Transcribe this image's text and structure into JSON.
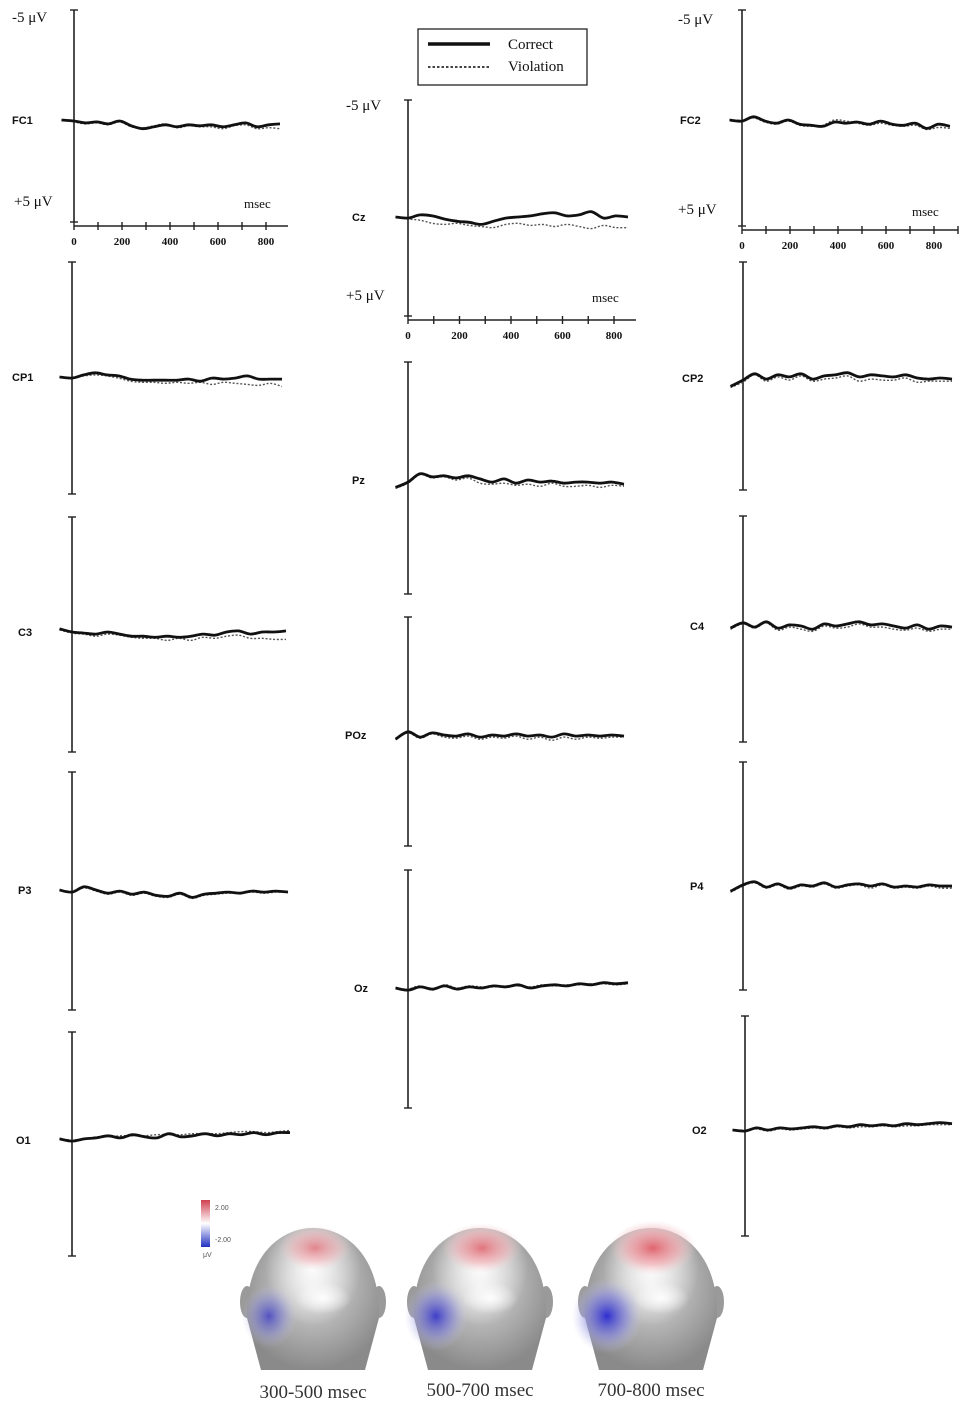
{
  "chart_data": {
    "type": "line",
    "units": {
      "neg": "-5 μV",
      "pos": "+5 μV",
      "time": "msec"
    },
    "ticks": [
      "0",
      "200",
      "400",
      "600",
      "800"
    ],
    "legend": [
      {
        "label": "Correct",
        "style": "solid"
      },
      {
        "label": "Violation",
        "style": "dotted"
      }
    ],
    "colors": {
      "correct": "#111111",
      "violation": "#555555"
    },
    "series_x_ms": [
      -50,
      0,
      50,
      100,
      150,
      200,
      250,
      300,
      350,
      400,
      450,
      500,
      550,
      600,
      650,
      700,
      750,
      800,
      850,
      900
    ],
    "channels": [
      {
        "name": "FC1",
        "scaled": true,
        "correct": [
          0.0,
          0.2,
          0.6,
          0.4,
          0.8,
          0.2,
          1.2,
          1.8,
          1.4,
          1.0,
          1.4,
          1.0,
          1.2,
          1.0,
          1.4,
          1.0,
          0.6,
          1.4,
          1.0,
          0.8
        ],
        "violation": [
          0.0,
          0.4,
          0.8,
          0.6,
          1.0,
          0.4,
          1.4,
          1.6,
          1.2,
          0.8,
          1.6,
          1.2,
          1.4,
          1.4,
          1.8,
          1.2,
          1.0,
          1.8,
          1.6,
          1.8
        ]
      },
      {
        "name": "Cz",
        "scaled": true,
        "correct": [
          0.0,
          0.2,
          -0.4,
          -0.2,
          0.4,
          0.8,
          1.0,
          1.4,
          0.8,
          0.2,
          0.0,
          -0.2,
          -0.6,
          -0.8,
          -0.2,
          -0.4,
          -1.0,
          0.2,
          -0.2,
          0.0
        ],
        "violation": [
          0.0,
          0.4,
          0.6,
          1.2,
          1.4,
          1.2,
          1.6,
          1.8,
          2.0,
          1.4,
          1.2,
          1.6,
          1.4,
          1.8,
          1.4,
          1.8,
          2.2,
          1.6,
          2.0,
          2.0
        ]
      },
      {
        "name": "FC2",
        "scaled": true,
        "correct": [
          0.0,
          0.2,
          -0.6,
          0.2,
          0.6,
          0.0,
          0.8,
          1.0,
          1.2,
          0.4,
          0.6,
          0.4,
          0.8,
          0.2,
          0.8,
          1.0,
          0.6,
          1.6,
          0.8,
          1.2
        ],
        "violation": [
          0.0,
          0.0,
          -0.4,
          0.4,
          0.8,
          0.2,
          1.0,
          1.2,
          1.0,
          0.0,
          0.2,
          0.6,
          1.0,
          0.6,
          1.0,
          1.2,
          1.0,
          1.8,
          1.4,
          1.6
        ]
      },
      {
        "name": "CP1",
        "correct": [
          0.0,
          0.2,
          -0.4,
          -0.8,
          -0.4,
          -0.2,
          0.4,
          0.6,
          0.6,
          0.6,
          0.6,
          0.4,
          0.8,
          0.2,
          0.4,
          0.2,
          -0.2,
          0.4,
          0.4,
          0.4
        ],
        "violation": [
          0.0,
          0.2,
          -0.2,
          -0.4,
          -0.2,
          0.2,
          0.8,
          1.0,
          1.0,
          1.2,
          1.0,
          1.2,
          1.0,
          1.4,
          1.0,
          1.2,
          1.4,
          1.6,
          1.2,
          1.8
        ]
      },
      {
        "name": "Pz",
        "correct": [
          1.4,
          0.4,
          -1.2,
          -0.6,
          -0.8,
          -0.4,
          -0.8,
          -0.2,
          0.4,
          -0.2,
          0.6,
          0.0,
          0.4,
          0.2,
          0.6,
          0.4,
          0.4,
          0.6,
          0.4,
          0.8
        ],
        "violation": [
          1.6,
          0.6,
          -1.0,
          -0.4,
          -0.6,
          0.0,
          -0.4,
          0.6,
          0.8,
          0.6,
          1.0,
          0.8,
          1.2,
          0.6,
          1.2,
          1.2,
          1.0,
          1.4,
          1.0,
          1.2
        ]
      },
      {
        "name": "CP2",
        "correct": [
          1.6,
          0.4,
          -0.8,
          0.2,
          -0.6,
          -0.2,
          -0.8,
          0.2,
          -0.4,
          -0.6,
          -1.0,
          -0.2,
          -0.6,
          -0.4,
          -0.2,
          -0.6,
          0.0,
          0.2,
          0.0,
          0.2
        ],
        "violation": [
          1.8,
          0.8,
          -0.6,
          0.6,
          -0.2,
          0.4,
          -0.4,
          0.6,
          0.2,
          0.0,
          -0.4,
          0.6,
          0.2,
          0.4,
          0.4,
          0.0,
          0.8,
          0.6,
          0.6,
          0.6
        ]
      },
      {
        "name": "C3",
        "correct": [
          -0.6,
          0.0,
          0.2,
          0.4,
          0.0,
          0.4,
          0.8,
          0.8,
          1.0,
          0.8,
          1.0,
          0.8,
          0.4,
          0.6,
          0.0,
          -0.2,
          0.4,
          0.0,
          0.0,
          -0.2
        ],
        "violation": [
          -0.4,
          0.2,
          0.4,
          0.8,
          0.4,
          0.6,
          1.0,
          1.2,
          1.2,
          1.6,
          1.2,
          1.6,
          1.0,
          1.2,
          0.8,
          0.6,
          1.2,
          1.2,
          1.4,
          1.4
        ]
      },
      {
        "name": "C4",
        "correct": [
          0.4,
          -0.6,
          0.2,
          -0.8,
          0.4,
          -0.2,
          0.0,
          0.6,
          -0.4,
          0.0,
          -0.4,
          -0.8,
          -0.2,
          -0.4,
          0.0,
          0.4,
          -0.2,
          0.6,
          0.0,
          0.2
        ],
        "violation": [
          0.6,
          -0.4,
          0.4,
          -0.6,
          0.8,
          0.2,
          0.6,
          1.0,
          0.0,
          0.4,
          0.2,
          -0.4,
          0.2,
          0.2,
          0.6,
          0.8,
          0.4,
          1.0,
          0.6,
          0.6
        ]
      },
      {
        "name": "POz",
        "correct": [
          0.8,
          -0.6,
          0.4,
          -0.4,
          0.0,
          0.2,
          -0.2,
          0.4,
          0.0,
          0.2,
          -0.2,
          0.2,
          0.0,
          0.4,
          -0.2,
          0.2,
          0.0,
          0.2,
          0.0,
          0.2
        ],
        "violation": [
          0.8,
          -0.4,
          0.6,
          -0.2,
          0.4,
          0.6,
          0.2,
          0.8,
          0.4,
          0.6,
          0.2,
          0.8,
          0.4,
          1.0,
          0.4,
          0.8,
          0.4,
          0.6,
          0.4,
          0.4
        ]
      },
      {
        "name": "P3",
        "correct": [
          0.0,
          0.4,
          -0.6,
          0.0,
          0.6,
          0.2,
          0.8,
          0.4,
          1.0,
          1.2,
          0.6,
          1.4,
          0.8,
          0.6,
          0.4,
          0.6,
          0.2,
          0.4,
          0.2,
          0.4
        ],
        "violation": [
          0.0,
          0.4,
          -0.4,
          0.2,
          0.8,
          0.4,
          1.0,
          0.6,
          1.2,
          1.4,
          0.8,
          1.6,
          1.0,
          0.8,
          0.6,
          0.6,
          0.4,
          0.6,
          0.4,
          0.4
        ]
      },
      {
        "name": "P4",
        "correct": [
          1.0,
          -0.2,
          -0.8,
          0.2,
          -0.4,
          0.4,
          -0.2,
          0.0,
          -0.6,
          0.2,
          -0.2,
          -0.4,
          0.0,
          -0.4,
          0.2,
          0.0,
          0.2,
          -0.2,
          0.0,
          0.0
        ],
        "violation": [
          1.2,
          0.0,
          -0.6,
          0.4,
          -0.2,
          0.6,
          0.0,
          0.2,
          -0.4,
          0.4,
          0.0,
          -0.2,
          0.4,
          -0.2,
          0.4,
          0.2,
          0.4,
          0.0,
          0.4,
          0.4
        ]
      },
      {
        "name": "Oz",
        "correct": [
          0.0,
          0.4,
          -0.2,
          0.2,
          -0.4,
          0.2,
          -0.2,
          0.0,
          -0.4,
          -0.2,
          -0.6,
          0.0,
          -0.4,
          -0.6,
          -0.4,
          -0.8,
          -0.6,
          -1.0,
          -0.8,
          -1.0
        ],
        "violation": [
          0.0,
          0.2,
          -0.4,
          0.4,
          -0.6,
          0.0,
          -0.4,
          -0.2,
          -0.2,
          -0.4,
          -0.4,
          -0.2,
          -0.6,
          -0.4,
          -0.6,
          -0.6,
          -0.8,
          -0.8,
          -0.6,
          -0.8
        ]
      },
      {
        "name": "O1",
        "correct": [
          -0.2,
          0.2,
          -0.2,
          -0.4,
          -0.8,
          -0.4,
          -1.0,
          -0.6,
          -0.4,
          -1.2,
          -0.6,
          -0.8,
          -1.2,
          -0.8,
          -1.2,
          -1.0,
          -1.4,
          -1.0,
          -1.4,
          -1.4
        ],
        "violation": [
          -0.2,
          0.0,
          -0.2,
          -0.6,
          -0.6,
          -0.8,
          -0.8,
          -0.8,
          -1.0,
          -1.0,
          -1.0,
          -1.2,
          -1.2,
          -1.2,
          -1.4,
          -1.6,
          -1.6,
          -1.4,
          -1.6,
          -1.8
        ]
      },
      {
        "name": "O2",
        "correct": [
          0.0,
          0.2,
          -0.4,
          0.0,
          -0.4,
          -0.2,
          -0.4,
          -0.6,
          -0.4,
          -0.8,
          -0.6,
          -1.0,
          -0.8,
          -1.0,
          -0.8,
          -1.2,
          -1.0,
          -1.2,
          -1.4,
          -1.2
        ],
        "violation": [
          0.0,
          0.0,
          -0.2,
          0.2,
          -0.2,
          0.0,
          -0.2,
          -0.4,
          -0.2,
          -0.6,
          -0.4,
          -0.6,
          -0.6,
          -0.8,
          -0.6,
          -0.8,
          -0.8,
          -1.0,
          -1.0,
          -1.0
        ]
      }
    ],
    "topomaps": {
      "colorbar": {
        "max": "2.00",
        "min": "-2.00",
        "unit": "μV"
      },
      "captions": [
        "300-500 msec",
        "500-700 msec",
        "700-800 msec"
      ],
      "maps": [
        {
          "red": 0.45,
          "blue": 0.4
        },
        {
          "red": 0.7,
          "blue": 0.7
        },
        {
          "red": 0.95,
          "blue": 0.95
        }
      ]
    }
  }
}
